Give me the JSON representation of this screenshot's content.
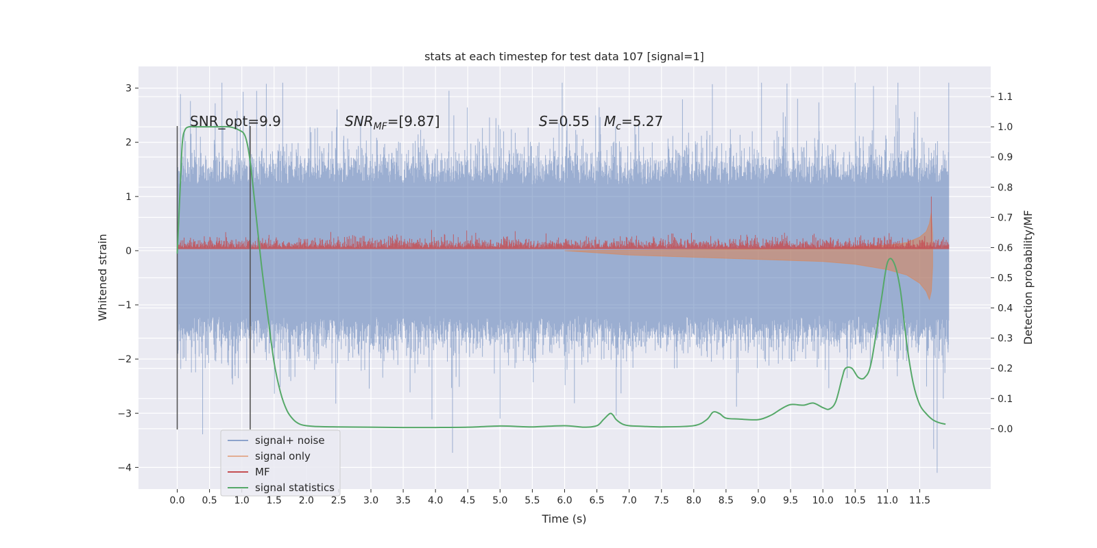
{
  "chart_data": {
    "type": "line",
    "title": "stats at each timestep for test data 107 [signal=1]",
    "xlabel": "Time (s)",
    "ylabel": "Whitened strain",
    "ylabel_right": "Detection probability/MF",
    "xlim": [
      -0.6,
      12.6
    ],
    "ylim": [
      -4.4,
      3.4
    ],
    "ylim_right": [
      -0.2,
      1.2
    ],
    "grid": true,
    "legend_position": "lower-left",
    "x_ticks": [
      "0.0",
      "0.5",
      "1.0",
      "1.5",
      "2.0",
      "2.5",
      "3.0",
      "3.5",
      "4.0",
      "4.5",
      "5.0",
      "5.5",
      "6.0",
      "6.5",
      "7.0",
      "7.5",
      "8.0",
      "8.5",
      "9.0",
      "9.5",
      "10.0",
      "10.5",
      "11.0",
      "11.5"
    ],
    "y_ticks": [
      "3",
      "2",
      "1",
      "0",
      "−1",
      "−2",
      "−3",
      "−4"
    ],
    "y_ticks_right": [
      "1.1",
      "1.0",
      "0.9",
      "0.8",
      "0.7",
      "0.6",
      "0.5",
      "0.4",
      "0.3",
      "0.2",
      "0.1",
      "0.0"
    ],
    "annotations": {
      "snr_opt": "SNR_opt=9.9",
      "snr_mf_label": "SNR",
      "snr_mf_sub": "MF",
      "snr_mf_value": "=[9.87]",
      "s_label": "S",
      "s_value": "=0.55",
      "mc_label": "M",
      "mc_sub": "c",
      "mc_value": "=5.27"
    },
    "vertical_lines": [
      0.0,
      1.13
    ],
    "series": [
      {
        "name": "signal+ noise",
        "color": "#4c72b0",
        "axis": "left",
        "style": "dense noise band",
        "x_range": [
          0.0,
          11.95
        ],
        "typical_range": [
          -1.7,
          1.7
        ],
        "max": 3.1,
        "min": -4.1
      },
      {
        "name": "signal only",
        "color": "#dd8452",
        "axis": "left",
        "style": "chirp envelope",
        "x": [
          6.0,
          7.0,
          8.0,
          9.0,
          10.0,
          10.5,
          11.0,
          11.3,
          11.5,
          11.6,
          11.65,
          11.68,
          11.7
        ],
        "upper": [
          0.0,
          0.01,
          0.02,
          0.03,
          0.05,
          0.07,
          0.1,
          0.15,
          0.25,
          0.35,
          0.5,
          0.7,
          0.3
        ],
        "lower": [
          0.0,
          -0.08,
          -0.12,
          -0.16,
          -0.2,
          -0.25,
          -0.35,
          -0.45,
          -0.6,
          -0.75,
          -0.9,
          -0.75,
          -0.3
        ]
      },
      {
        "name": "MF",
        "color": "#c44e52",
        "axis": "left",
        "style": "noisy low band",
        "x_range": [
          0.0,
          11.95
        ],
        "typical_range": [
          0.05,
          0.3
        ],
        "peaks": [
          {
            "x": 0.0,
            "y": 0.45
          },
          {
            "x": 1.13,
            "y": 0.52
          },
          {
            "x": 11.68,
            "y": 1.0
          }
        ]
      },
      {
        "name": "signal statistics",
        "color": "#55a868",
        "axis": "right",
        "x": [
          0.0,
          0.05,
          0.08,
          0.12,
          0.18,
          0.25,
          0.4,
          0.6,
          0.8,
          0.95,
          1.05,
          1.12,
          1.2,
          1.3,
          1.4,
          1.5,
          1.6,
          1.7,
          1.8,
          1.9,
          2.0,
          2.2,
          2.5,
          3.0,
          3.5,
          4.0,
          4.5,
          5.0,
          5.3,
          5.5,
          6.0,
          6.3,
          6.5,
          6.6,
          6.7,
          6.75,
          6.8,
          6.9,
          7.0,
          7.2,
          7.5,
          8.0,
          8.2,
          8.3,
          8.4,
          8.5,
          8.7,
          9.0,
          9.2,
          9.35,
          9.5,
          9.7,
          9.85,
          10.0,
          10.1,
          10.2,
          10.3,
          10.35,
          10.45,
          10.55,
          10.65,
          10.75,
          10.9,
          11.0,
          11.1,
          11.2,
          11.3,
          11.4,
          11.5,
          11.6,
          11.7,
          11.8,
          11.9
        ],
        "values": [
          0.58,
          0.82,
          0.95,
          0.99,
          1.0,
          1.0,
          1.0,
          1.0,
          1.0,
          0.99,
          0.97,
          0.9,
          0.75,
          0.55,
          0.38,
          0.22,
          0.12,
          0.06,
          0.03,
          0.015,
          0.01,
          0.007,
          0.006,
          0.005,
          0.004,
          0.004,
          0.005,
          0.009,
          0.007,
          0.006,
          0.01,
          0.005,
          0.01,
          0.03,
          0.05,
          0.045,
          0.03,
          0.015,
          0.01,
          0.008,
          0.006,
          0.01,
          0.03,
          0.055,
          0.05,
          0.035,
          0.032,
          0.03,
          0.045,
          0.065,
          0.08,
          0.078,
          0.085,
          0.07,
          0.065,
          0.09,
          0.17,
          0.2,
          0.2,
          0.17,
          0.17,
          0.22,
          0.42,
          0.55,
          0.55,
          0.46,
          0.28,
          0.15,
          0.08,
          0.05,
          0.03,
          0.02,
          0.015
        ]
      }
    ]
  }
}
